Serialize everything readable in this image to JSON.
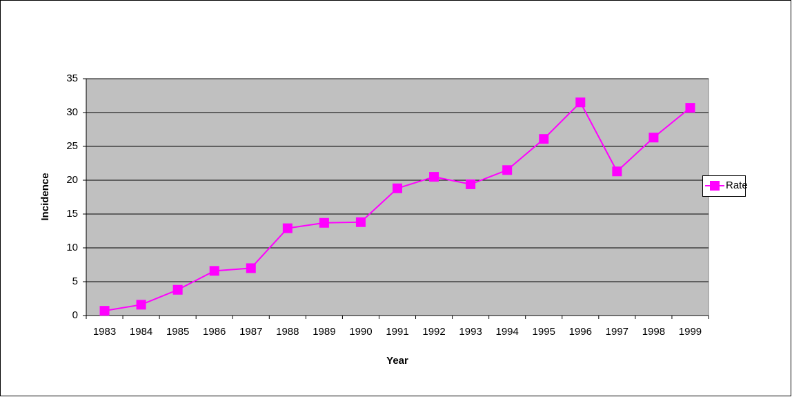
{
  "chart_data": {
    "type": "line",
    "x_label": "Year",
    "y_label": "Incidence",
    "categories": [
      "1983",
      "1984",
      "1985",
      "1986",
      "1987",
      "1988",
      "1989",
      "1990",
      "1991",
      "1992",
      "1993",
      "1994",
      "1995",
      "1996",
      "1997",
      "1998",
      "1999"
    ],
    "series": [
      {
        "name": "Rate",
        "color": "#ff00ff",
        "values": [
          0.7,
          1.6,
          3.8,
          6.6,
          7.0,
          12.9,
          13.7,
          13.8,
          18.8,
          20.5,
          19.4,
          21.5,
          26.1,
          31.5,
          21.3,
          26.3,
          30.7
        ]
      }
    ],
    "ylim": [
      0,
      35
    ],
    "yticks": [
      0,
      5,
      10,
      15,
      20,
      25,
      30,
      35
    ],
    "grid": true,
    "legend": "right"
  }
}
